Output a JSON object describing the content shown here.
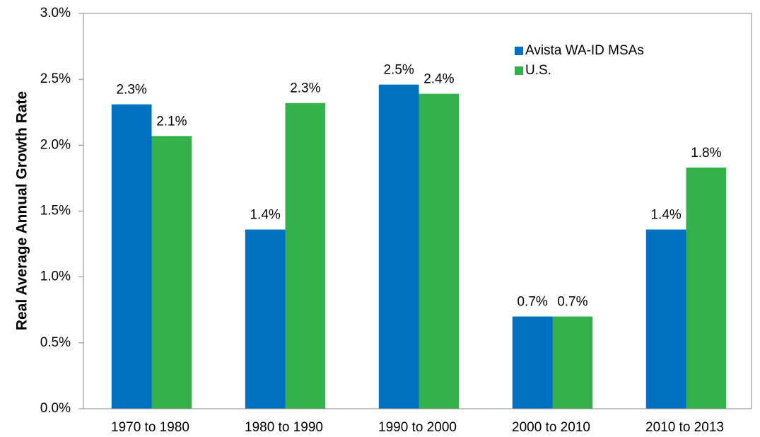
{
  "chart_data": {
    "type": "bar",
    "y_label": "Real Average Annual Growth Rate",
    "categories": [
      "1970 to 1980",
      "1980 to 1990",
      "1990 to 2000",
      "2000 to 2010",
      "2010 to 2013"
    ],
    "series": [
      {
        "name": "Avista WA-ID MSAs",
        "color": "#0070c0",
        "values": [
          2.31,
          1.36,
          2.46,
          0.7,
          1.36
        ],
        "value_labels": [
          "2.3%",
          "1.4%",
          "2.5%",
          "0.7%",
          "1.4%"
        ]
      },
      {
        "name": "U.S.",
        "color": "#33b24b",
        "values": [
          2.07,
          2.32,
          2.39,
          0.7,
          1.83
        ],
        "value_labels": [
          "2.1%",
          "2.3%",
          "2.4%",
          "0.7%",
          "1.8%"
        ]
      }
    ],
    "ylim": [
      0,
      3
    ],
    "yticks": [
      {
        "value": 0,
        "label": "0.0%"
      },
      {
        "value": 0.5,
        "label": "0.5%"
      },
      {
        "value": 1,
        "label": "1.0%"
      },
      {
        "value": 1.5,
        "label": "1.5%"
      },
      {
        "value": 2,
        "label": "2.0%"
      },
      {
        "value": 2.5,
        "label": "2.5%"
      },
      {
        "value": 3,
        "label": "3.0%"
      }
    ],
    "grid": false,
    "legend": "upper right"
  }
}
